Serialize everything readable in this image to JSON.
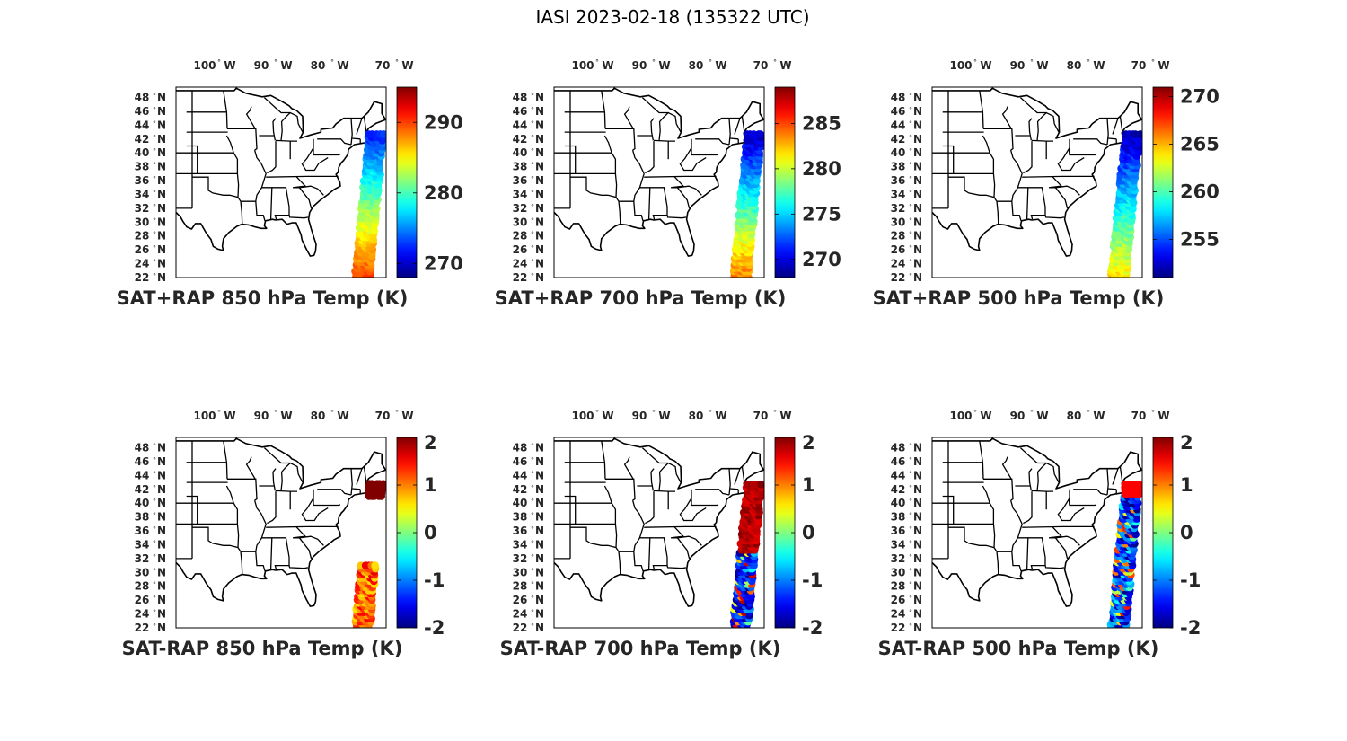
{
  "figure": {
    "title": "IASI 2023-02-18 (135322 UTC)"
  },
  "lat_labels": [
    "48",
    "46",
    "44",
    "42",
    "40",
    "38",
    "36",
    "34",
    "32",
    "30",
    "28",
    "26",
    "24",
    "22"
  ],
  "lat_hemisphere": "N",
  "lon_labels": [
    "100",
    "90",
    "80",
    "70"
  ],
  "lon_hemisphere": "W",
  "degree_symbol": "°",
  "colormap": "jet",
  "colors": {
    "map_outline": "#000000",
    "text": "#262626",
    "title_text": "#000000"
  },
  "panels": [
    {
      "id": "sat-plus-rap-850",
      "caption": "SAT+RAP 850 hPa Temp (K)",
      "colorbar": {
        "ticks": [
          "270",
          "280",
          "290"
        ],
        "range": [
          268,
          295
        ]
      },
      "swath": {
        "lat_range": [
          22,
          43
        ],
        "dominant_values": [
          272,
          282,
          290
        ],
        "pattern": "gradient"
      }
    },
    {
      "id": "sat-plus-rap-700",
      "caption": "SAT+RAP 700 hPa Temp (K)",
      "colorbar": {
        "ticks": [
          "270",
          "275",
          "280",
          "285"
        ],
        "range": [
          268,
          289
        ]
      },
      "swath": {
        "lat_range": [
          22,
          43
        ],
        "dominant_values": [
          269,
          276,
          284
        ],
        "pattern": "gradient"
      }
    },
    {
      "id": "sat-plus-rap-500",
      "caption": "SAT+RAP 500 hPa Temp (K)",
      "colorbar": {
        "ticks": [
          "255",
          "260",
          "265",
          "270"
        ],
        "range": [
          251,
          271
        ]
      },
      "swath": {
        "lat_range": [
          22,
          43
        ],
        "dominant_values": [
          252,
          258,
          264
        ],
        "pattern": "gradient"
      }
    },
    {
      "id": "sat-minus-rap-850",
      "caption": "SAT-RAP 850 hPa Temp (K)",
      "colorbar": {
        "ticks": [
          "-2",
          "-1",
          "0",
          "1",
          "2"
        ],
        "range": [
          -2,
          2
        ]
      },
      "swath": {
        "lat_range": [
          22,
          31
        ],
        "extra_lat_range": [
          41,
          43
        ],
        "dominant_values": [
          0.6,
          1.2,
          2.0
        ],
        "pattern": "warm"
      }
    },
    {
      "id": "sat-minus-rap-700",
      "caption": "SAT-RAP 700 hPa Temp (K)",
      "colorbar": {
        "ticks": [
          "-2",
          "-1",
          "0",
          "1",
          "2"
        ],
        "range": [
          -2,
          2
        ]
      },
      "swath": {
        "lat_range": [
          22,
          43
        ],
        "dominant_values": [
          -2,
          -1,
          2
        ],
        "pattern": "mixed"
      }
    },
    {
      "id": "sat-minus-rap-500",
      "caption": "SAT-RAP 500 hPa Temp (K)",
      "colorbar": {
        "ticks": [
          "-2",
          "-1",
          "0",
          "1",
          "2"
        ],
        "range": [
          -2,
          2
        ]
      },
      "swath": {
        "lat_range": [
          22,
          43
        ],
        "dominant_values": [
          -2,
          -1,
          0.5
        ],
        "pattern": "cold"
      }
    }
  ]
}
